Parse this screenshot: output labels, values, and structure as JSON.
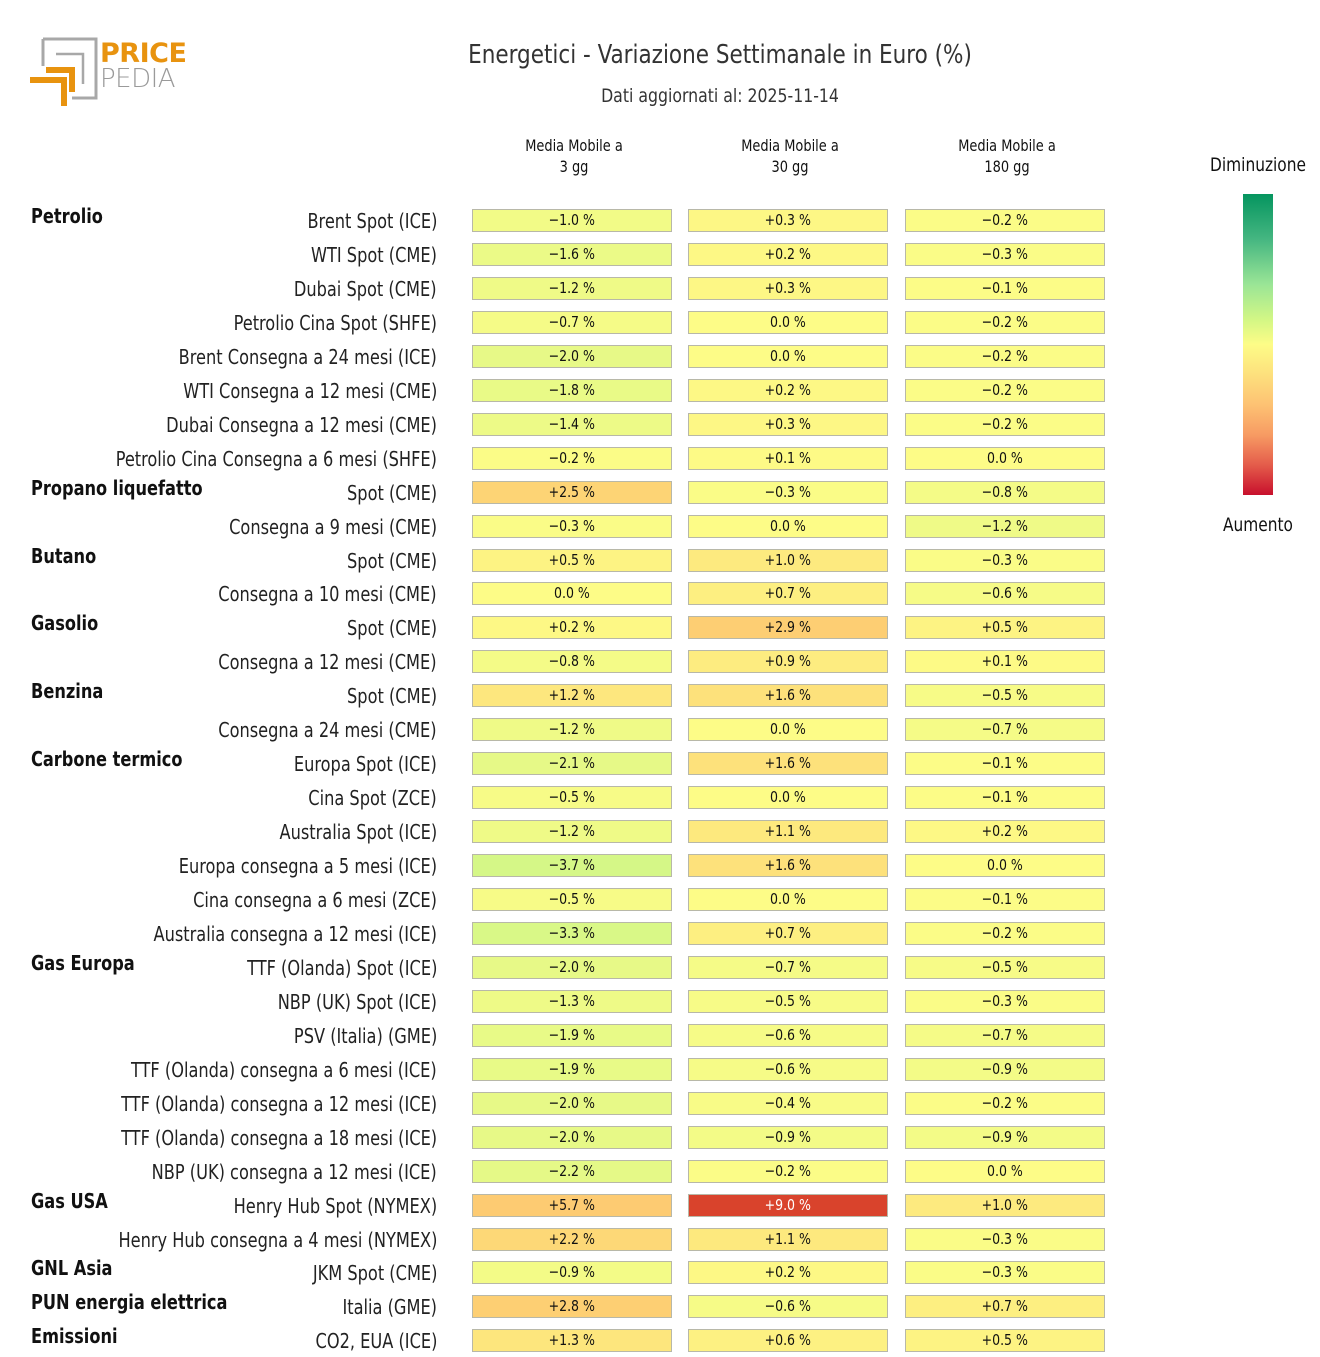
{
  "logo": {
    "line1": "PRICE",
    "line2": "PEDIA"
  },
  "title": "Energetici - Variazione Settimanale in Euro (%)",
  "subtitle": "Dati aggiornati al: 2025-11-14",
  "legend": {
    "top": "Diminuzione",
    "bottom": "Aumento"
  },
  "chart_data": {
    "type": "heatmap",
    "title": "Energetici - Variazione Settimanale in Euro (%)",
    "subtitle": "Dati aggiornati al: 2025-11-14",
    "columns": [
      "Media Mobile a\n3 gg",
      "Media Mobile a\n30 gg",
      "Media Mobile a\n180 gg"
    ],
    "column_lines": [
      [
        "Media Mobile a",
        "3 gg"
      ],
      [
        "Media Mobile a",
        "30 gg"
      ],
      [
        "Media Mobile a",
        "180 gg"
      ]
    ],
    "unit": "%",
    "colorscale": {
      "negative": "Diminuzione",
      "positive": "Aumento",
      "range": [
        -9,
        9
      ],
      "stops": [
        "#05955f",
        "#9ae596",
        "#fdfc87",
        "#fdc273",
        "#c8102d"
      ]
    },
    "legend_position": "right",
    "rows": [
      {
        "group": "Petrolio",
        "label": "Brent Spot (ICE)",
        "values": [
          -1.0,
          0.3,
          -0.2
        ]
      },
      {
        "group": "",
        "label": "WTI Spot (CME)",
        "values": [
          -1.6,
          0.2,
          -0.3
        ]
      },
      {
        "group": "",
        "label": "Dubai Spot (CME)",
        "values": [
          -1.2,
          0.3,
          -0.1
        ]
      },
      {
        "group": "",
        "label": "Petrolio Cina Spot (SHFE)",
        "values": [
          -0.7,
          0.0,
          -0.2
        ]
      },
      {
        "group": "",
        "label": "Brent Consegna a 24 mesi (ICE)",
        "values": [
          -2.0,
          0.0,
          -0.2
        ]
      },
      {
        "group": "",
        "label": "WTI Consegna a 12 mesi (CME)",
        "values": [
          -1.8,
          0.2,
          -0.2
        ]
      },
      {
        "group": "",
        "label": "Dubai Consegna a 12 mesi (CME)",
        "values": [
          -1.4,
          0.3,
          -0.2
        ]
      },
      {
        "group": "",
        "label": "Petrolio Cina Consegna a 6 mesi (SHFE)",
        "values": [
          -0.2,
          0.1,
          0.0
        ]
      },
      {
        "group": "Propano liquefatto",
        "label": "Spot (CME)",
        "values": [
          2.5,
          -0.3,
          -0.8
        ]
      },
      {
        "group": "",
        "label": "Consegna a 9 mesi (CME)",
        "values": [
          -0.3,
          0.0,
          -1.2
        ]
      },
      {
        "group": "Butano",
        "label": "Spot (CME)",
        "values": [
          0.5,
          1.0,
          -0.3
        ]
      },
      {
        "group": "",
        "label": "Consegna a 10 mesi (CME)",
        "values": [
          0.0,
          0.7,
          -0.6
        ]
      },
      {
        "group": "Gasolio",
        "label": "Spot (CME)",
        "values": [
          0.2,
          2.9,
          0.5
        ]
      },
      {
        "group": "",
        "label": "Consegna a 12 mesi (CME)",
        "values": [
          -0.8,
          0.9,
          0.1
        ]
      },
      {
        "group": "Benzina",
        "label": "Spot (CME)",
        "values": [
          1.2,
          1.6,
          -0.5
        ]
      },
      {
        "group": "",
        "label": "Consegna a 24 mesi (CME)",
        "values": [
          -1.2,
          0.0,
          -0.7
        ]
      },
      {
        "group": "Carbone termico",
        "label": "Europa Spot (ICE)",
        "values": [
          -2.1,
          1.6,
          -0.1
        ]
      },
      {
        "group": "",
        "label": "Cina Spot (ZCE)",
        "values": [
          -0.5,
          0.0,
          -0.1
        ]
      },
      {
        "group": "",
        "label": "Australia Spot (ICE)",
        "values": [
          -1.2,
          1.1,
          0.2
        ]
      },
      {
        "group": "",
        "label": "Europa consegna a 5 mesi (ICE)",
        "values": [
          -3.7,
          1.6,
          0.0
        ]
      },
      {
        "group": "",
        "label": "Cina consegna a 6 mesi (ZCE)",
        "values": [
          -0.5,
          0.0,
          -0.1
        ]
      },
      {
        "group": "",
        "label": "Australia consegna a 12 mesi (ICE)",
        "values": [
          -3.3,
          0.7,
          -0.2
        ]
      },
      {
        "group": "Gas Europa",
        "label": "TTF (Olanda) Spot (ICE)",
        "values": [
          -2.0,
          -0.7,
          -0.5
        ]
      },
      {
        "group": "",
        "label": "NBP (UK) Spot (ICE)",
        "values": [
          -1.3,
          -0.5,
          -0.3
        ]
      },
      {
        "group": "",
        "label": "PSV (Italia) (GME)",
        "values": [
          -1.9,
          -0.6,
          -0.7
        ]
      },
      {
        "group": "",
        "label": "TTF (Olanda) consegna a 6 mesi (ICE)",
        "values": [
          -1.9,
          -0.6,
          -0.9
        ]
      },
      {
        "group": "",
        "label": "TTF (Olanda) consegna a 12 mesi (ICE)",
        "values": [
          -2.0,
          -0.4,
          -0.2
        ]
      },
      {
        "group": "",
        "label": "TTF (Olanda) consegna a 18 mesi (ICE)",
        "values": [
          -2.0,
          -0.9,
          -0.9
        ]
      },
      {
        "group": "",
        "label": "NBP (UK) consegna a 12 mesi (ICE)",
        "values": [
          -2.2,
          -0.2,
          0.0
        ]
      },
      {
        "group": "Gas USA",
        "label": "Henry Hub Spot (NYMEX)",
        "values": [
          5.7,
          9.0,
          1.0
        ]
      },
      {
        "group": "",
        "label": "Henry Hub consegna a 4 mesi (NYMEX)",
        "values": [
          2.2,
          1.1,
          -0.3
        ]
      },
      {
        "group": "GNL Asia",
        "label": "JKM Spot (CME)",
        "values": [
          -0.9,
          0.2,
          -0.3
        ]
      },
      {
        "group": "PUN energia elettrica",
        "label": "Italia (GME)",
        "values": [
          2.8,
          -0.6,
          0.7
        ]
      },
      {
        "group": "Emissioni",
        "label": "CO2, EUA (ICE)",
        "values": [
          1.3,
          0.6,
          0.5
        ]
      }
    ]
  }
}
